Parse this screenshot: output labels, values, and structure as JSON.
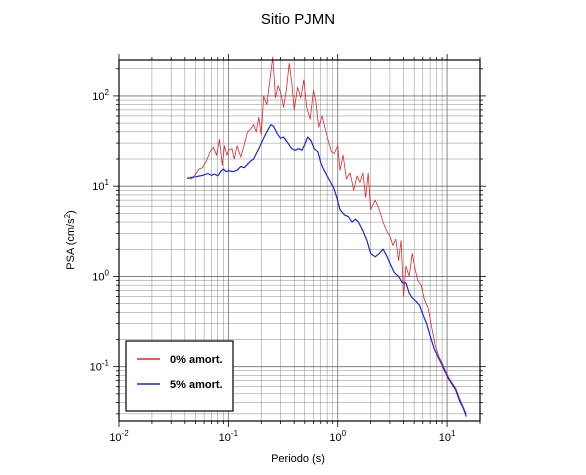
{
  "chart_data": {
    "type": "line",
    "title": "Sitio PJMN",
    "xlabel": "Periodo (s)",
    "ylabel": {
      "prefix": "PSA (cm/s",
      "exponent": "2",
      "suffix": ")"
    },
    "x_scale": "log",
    "y_scale": "log",
    "xlim": [
      0.01,
      20
    ],
    "ylim": [
      0.025,
      250
    ],
    "grid": true,
    "legend_position": "bottom-left",
    "x_ticks": [
      {
        "value": 0.01,
        "base": "10",
        "exp": "-2"
      },
      {
        "value": 0.1,
        "base": "10",
        "exp": "-1"
      },
      {
        "value": 1,
        "base": "10",
        "exp": "0"
      },
      {
        "value": 10,
        "base": "10",
        "exp": "1"
      }
    ],
    "y_ticks": [
      {
        "value": 0.1,
        "base": "10",
        "exp": "-1"
      },
      {
        "value": 1,
        "base": "10",
        "exp": "0"
      },
      {
        "value": 10,
        "base": "10",
        "exp": "1"
      },
      {
        "value": 100,
        "base": "10",
        "exp": "2"
      }
    ],
    "series": [
      {
        "name": "0% amort.",
        "color": "#e8252a",
        "points": [
          [
            0.042,
            12.5
          ],
          [
            0.046,
            12.0
          ],
          [
            0.05,
            13.5
          ],
          [
            0.054,
            15.5
          ],
          [
            0.058,
            16.0
          ],
          [
            0.063,
            19.0
          ],
          [
            0.068,
            24.0
          ],
          [
            0.073,
            27.0
          ],
          [
            0.078,
            22.0
          ],
          [
            0.083,
            33.0
          ],
          [
            0.088,
            17.0
          ],
          [
            0.092,
            28.0
          ],
          [
            0.097,
            22.0
          ],
          [
            0.1,
            25.0
          ],
          [
            0.108,
            26.0
          ],
          [
            0.113,
            20.0
          ],
          [
            0.12,
            28.0
          ],
          [
            0.13,
            21.0
          ],
          [
            0.14,
            29.0
          ],
          [
            0.15,
            40.0
          ],
          [
            0.16,
            43.0
          ],
          [
            0.17,
            48.0
          ],
          [
            0.18,
            40.0
          ],
          [
            0.19,
            58.0
          ],
          [
            0.2,
            37.0
          ],
          [
            0.21,
            100.0
          ],
          [
            0.225,
            80.0
          ],
          [
            0.24,
            150.0
          ],
          [
            0.255,
            270.0
          ],
          [
            0.27,
            95.0
          ],
          [
            0.285,
            130.0
          ],
          [
            0.3,
            110.0
          ],
          [
            0.32,
            75.0
          ],
          [
            0.34,
            120.0
          ],
          [
            0.36,
            230.0
          ],
          [
            0.38,
            140.0
          ],
          [
            0.4,
            70.0
          ],
          [
            0.43,
            125.0
          ],
          [
            0.46,
            95.0
          ],
          [
            0.49,
            150.0
          ],
          [
            0.52,
            75.0
          ],
          [
            0.56,
            55.0
          ],
          [
            0.6,
            115.0
          ],
          [
            0.63,
            88.0
          ],
          [
            0.67,
            45.0
          ],
          [
            0.72,
            60.0
          ],
          [
            0.78,
            40.0
          ],
          [
            0.83,
            30.0
          ],
          [
            0.88,
            24.0
          ],
          [
            0.93,
            23.0
          ],
          [
            1.0,
            28.0
          ],
          [
            1.05,
            15.0
          ],
          [
            1.12,
            22.0
          ],
          [
            1.2,
            12.0
          ],
          [
            1.3,
            14.0
          ],
          [
            1.4,
            9.0
          ],
          [
            1.5,
            13.0
          ],
          [
            1.6,
            11.0
          ],
          [
            1.7,
            14.0
          ],
          [
            1.8,
            7.5
          ],
          [
            1.9,
            14.0
          ],
          [
            2.0,
            5.5
          ],
          [
            2.2,
            7.0
          ],
          [
            2.4,
            5.5
          ],
          [
            2.6,
            4.0
          ],
          [
            2.8,
            3.2
          ],
          [
            3.0,
            2.8
          ],
          [
            3.2,
            2.2
          ],
          [
            3.4,
            2.6
          ],
          [
            3.6,
            1.5
          ],
          [
            3.8,
            2.5
          ],
          [
            4.0,
            0.6
          ],
          [
            4.2,
            1.3
          ],
          [
            4.5,
            1.0
          ],
          [
            4.8,
            1.8
          ],
          [
            5.1,
            1.2
          ],
          [
            5.4,
            0.9
          ],
          [
            5.8,
            0.8
          ],
          [
            6.2,
            0.55
          ],
          [
            6.7,
            0.45
          ],
          [
            7.2,
            0.28
          ],
          [
            7.8,
            0.17
          ],
          [
            8.4,
            0.13
          ],
          [
            9.0,
            0.11
          ],
          [
            9.7,
            0.09
          ],
          [
            10.4,
            0.075
          ],
          [
            11.2,
            0.065
          ],
          [
            12.0,
            0.058
          ],
          [
            13.0,
            0.045
          ],
          [
            14.0,
            0.036
          ],
          [
            15.0,
            0.03
          ]
        ]
      },
      {
        "name": "5% amort.",
        "color": "#1428e0",
        "points": [
          [
            0.042,
            12.2
          ],
          [
            0.046,
            12.5
          ],
          [
            0.05,
            12.7
          ],
          [
            0.055,
            13.0
          ],
          [
            0.06,
            13.3
          ],
          [
            0.065,
            13.8
          ],
          [
            0.07,
            13.2
          ],
          [
            0.075,
            13.6
          ],
          [
            0.08,
            13.0
          ],
          [
            0.085,
            14.5
          ],
          [
            0.09,
            15.5
          ],
          [
            0.095,
            14.5
          ],
          [
            0.1,
            14.8
          ],
          [
            0.11,
            14.5
          ],
          [
            0.12,
            15.0
          ],
          [
            0.13,
            16.5
          ],
          [
            0.14,
            16.0
          ],
          [
            0.15,
            17.5
          ],
          [
            0.16,
            19.0
          ],
          [
            0.17,
            20.0
          ],
          [
            0.18,
            23.0
          ],
          [
            0.19,
            26.0
          ],
          [
            0.2,
            30.0
          ],
          [
            0.215,
            36.0
          ],
          [
            0.23,
            42.0
          ],
          [
            0.245,
            48.0
          ],
          [
            0.26,
            46.0
          ],
          [
            0.28,
            38.0
          ],
          [
            0.3,
            34.0
          ],
          [
            0.32,
            35.0
          ],
          [
            0.35,
            30.0
          ],
          [
            0.38,
            26.0
          ],
          [
            0.41,
            25.0
          ],
          [
            0.44,
            26.0
          ],
          [
            0.47,
            25.0
          ],
          [
            0.5,
            29.0
          ],
          [
            0.53,
            35.0
          ],
          [
            0.57,
            32.0
          ],
          [
            0.61,
            26.0
          ],
          [
            0.66,
            24.0
          ],
          [
            0.7,
            18.0
          ],
          [
            0.75,
            15.0
          ],
          [
            0.8,
            13.0
          ],
          [
            0.86,
            11.0
          ],
          [
            0.92,
            9.5
          ],
          [
            0.98,
            7.5
          ],
          [
            1.05,
            5.5
          ],
          [
            1.15,
            4.8
          ],
          [
            1.25,
            4.6
          ],
          [
            1.35,
            4.0
          ],
          [
            1.45,
            4.3
          ],
          [
            1.55,
            4.0
          ],
          [
            1.7,
            3.2
          ],
          [
            1.85,
            2.5
          ],
          [
            2.0,
            1.8
          ],
          [
            2.2,
            1.65
          ],
          [
            2.4,
            1.8
          ],
          [
            2.6,
            2.0
          ],
          [
            2.8,
            1.7
          ],
          [
            3.0,
            1.4
          ],
          [
            3.3,
            1.1
          ],
          [
            3.6,
            1.0
          ],
          [
            3.9,
            0.85
          ],
          [
            4.2,
            0.85
          ],
          [
            4.5,
            0.65
          ],
          [
            4.8,
            0.58
          ],
          [
            5.2,
            0.53
          ],
          [
            5.6,
            0.48
          ],
          [
            6.0,
            0.38
          ],
          [
            6.5,
            0.3
          ],
          [
            7.0,
            0.22
          ],
          [
            7.6,
            0.16
          ],
          [
            8.2,
            0.13
          ],
          [
            8.8,
            0.11
          ],
          [
            9.5,
            0.09
          ],
          [
            10.2,
            0.075
          ],
          [
            11.0,
            0.065
          ],
          [
            12.0,
            0.055
          ],
          [
            13.0,
            0.042
          ],
          [
            14.0,
            0.035
          ],
          [
            15.0,
            0.028
          ]
        ]
      }
    ]
  }
}
